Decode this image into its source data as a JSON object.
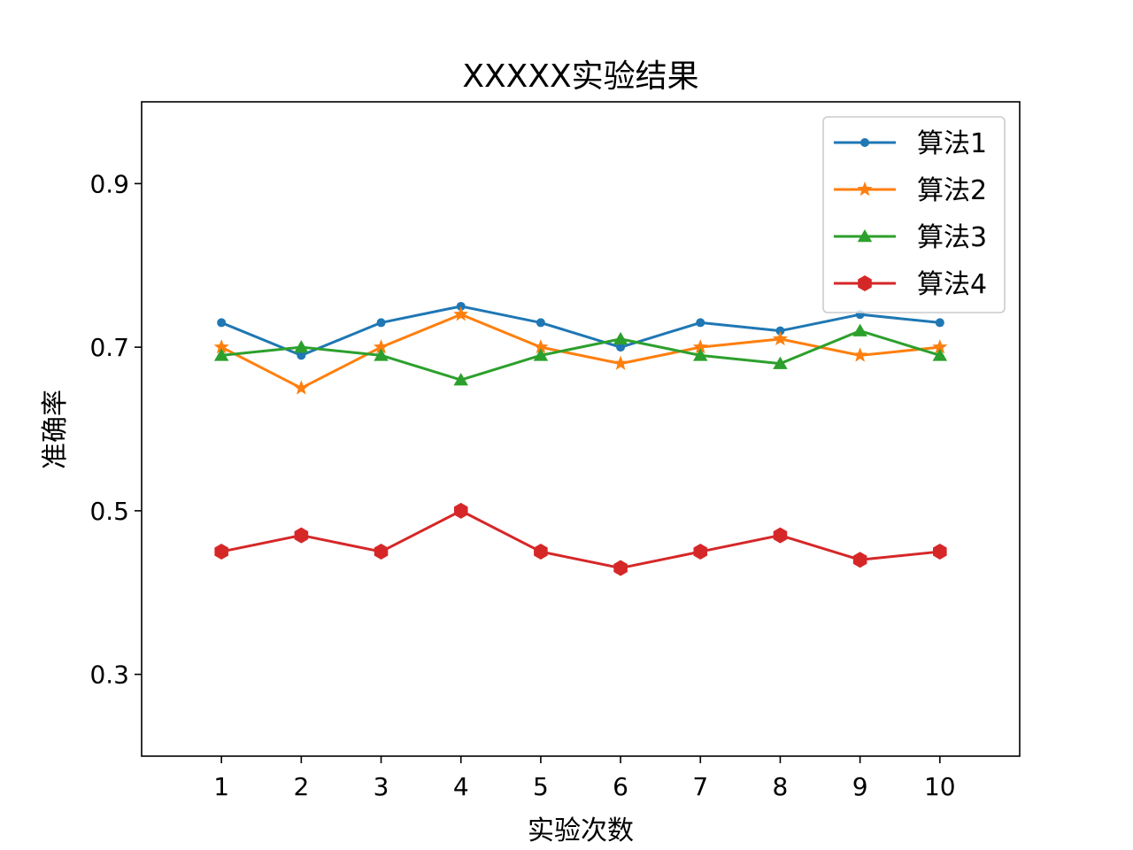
{
  "chart_data": {
    "type": "line",
    "title": "XXXXX实验结果",
    "xlabel": "实验次数",
    "ylabel": "准确率",
    "x": [
      1,
      2,
      3,
      4,
      5,
      6,
      7,
      8,
      9,
      10
    ],
    "x_ticks": [
      "1",
      "2",
      "3",
      "4",
      "5",
      "6",
      "7",
      "8",
      "9",
      "10"
    ],
    "xlim": [
      0,
      11
    ],
    "ylim": [
      0.2,
      1.0
    ],
    "y_ticks": [
      0.3,
      0.5,
      0.7,
      0.9
    ],
    "y_tick_labels": [
      "0.3",
      "0.5",
      "0.7",
      "0.9"
    ],
    "grid": false,
    "legend_position": "top-right",
    "series": [
      {
        "name": "算法1",
        "color": "#1f77b4",
        "marker": "point",
        "values": [
          0.73,
          0.69,
          0.73,
          0.75,
          0.73,
          0.7,
          0.73,
          0.72,
          0.74,
          0.73
        ]
      },
      {
        "name": "算法2",
        "color": "#ff7f0e",
        "marker": "star",
        "values": [
          0.7,
          0.65,
          0.7,
          0.74,
          0.7,
          0.68,
          0.7,
          0.71,
          0.69,
          0.7
        ]
      },
      {
        "name": "算法3",
        "color": "#2ca02c",
        "marker": "triangle",
        "values": [
          0.69,
          0.7,
          0.69,
          0.66,
          0.69,
          0.71,
          0.69,
          0.68,
          0.72,
          0.69
        ]
      },
      {
        "name": "算法4",
        "color": "#d62728",
        "marker": "hexagon",
        "values": [
          0.45,
          0.47,
          0.45,
          0.5,
          0.45,
          0.43,
          0.45,
          0.47,
          0.44,
          0.45
        ]
      }
    ]
  }
}
